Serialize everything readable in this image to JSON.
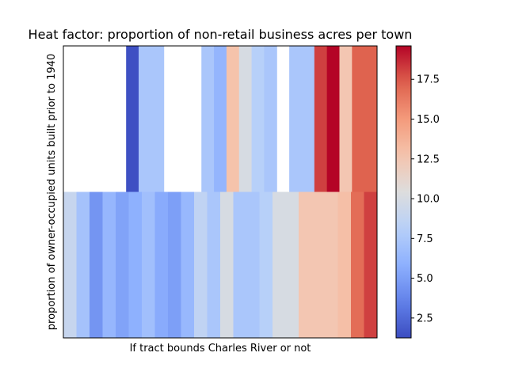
{
  "chart_data": {
    "type": "heatmap",
    "title": "Heat factor: proportion of non-retail business acres per town",
    "xlabel": "If tract bounds Charles River or not",
    "ylabel": "proportion of owner-occupied units built prior to 1940",
    "colormap": "coolwarm",
    "color_range": [
      1.25,
      19.6
    ],
    "colorbar_ticks": [
      "2.5",
      "5.0",
      "7.5",
      "10.0",
      "12.5",
      "15.0",
      "17.5"
    ],
    "colorbar_tick_values": [
      2.5,
      5.0,
      7.5,
      10.0,
      12.5,
      15.0,
      17.5
    ],
    "x_ticks_visible": false,
    "y_ticks_visible": false,
    "rows": [
      {
        "segments": [
          {
            "span": 5,
            "value": null
          },
          {
            "span": 1,
            "value": 1.4
          },
          {
            "span": 2,
            "value": 7.4
          },
          {
            "span": 3,
            "value": null
          },
          {
            "span": 1,
            "value": 7.4
          },
          {
            "span": 1,
            "value": 6.2
          },
          {
            "span": 1,
            "value": 12.8
          },
          {
            "span": 1,
            "value": 10.0
          },
          {
            "span": 1,
            "value": 8.1
          },
          {
            "span": 1,
            "value": 7.4
          },
          {
            "span": 1,
            "value": null
          },
          {
            "span": 2,
            "value": 7.4
          },
          {
            "span": 1,
            "value": 18.1
          },
          {
            "span": 1,
            "value": 19.6
          },
          {
            "span": 1,
            "value": 12.5
          },
          {
            "span": 2,
            "value": 17.2
          }
        ]
      },
      {
        "segments": [
          {
            "span": 1,
            "value": 9.0
          },
          {
            "span": 1,
            "value": 7.1
          },
          {
            "span": 1,
            "value": 4.5
          },
          {
            "span": 1,
            "value": 6.3
          },
          {
            "span": 1,
            "value": 5.2
          },
          {
            "span": 1,
            "value": 5.9
          },
          {
            "span": 1,
            "value": 6.9
          },
          {
            "span": 1,
            "value": 5.6
          },
          {
            "span": 1,
            "value": 5.0
          },
          {
            "span": 1,
            "value": 6.4
          },
          {
            "span": 1,
            "value": 8.6
          },
          {
            "span": 1,
            "value": 7.4
          },
          {
            "span": 1,
            "value": 10.0
          },
          {
            "span": 2,
            "value": 7.4
          },
          {
            "span": 1,
            "value": 8.1
          },
          {
            "span": 2,
            "value": 10.0
          },
          {
            "span": 3,
            "value": 12.5
          },
          {
            "span": 1,
            "value": 13.0
          },
          {
            "span": 1,
            "value": 16.8
          },
          {
            "span": 1,
            "value": 18.1
          }
        ]
      }
    ]
  }
}
